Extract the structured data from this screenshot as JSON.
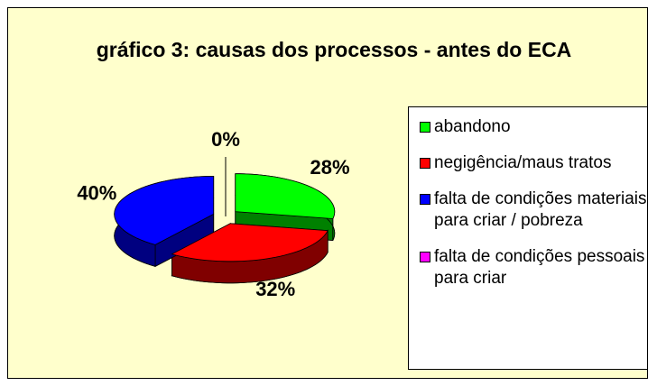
{
  "chart_data": {
    "type": "pie",
    "title": "gráfico 3: causas dos processos - antes do ECA",
    "categories": [
      "abandono",
      "negigência/maus tratos",
      "falta de condições materiais para criar / pobreza",
      "falta de condições pessoais para criar"
    ],
    "values": [
      28,
      32,
      40,
      0
    ],
    "value_labels": [
      "28%",
      "32%",
      "40%",
      "0%"
    ],
    "colors": [
      "#00ff00",
      "#ff0000",
      "#0000ff",
      "#ff00ff"
    ],
    "legend": "right"
  }
}
